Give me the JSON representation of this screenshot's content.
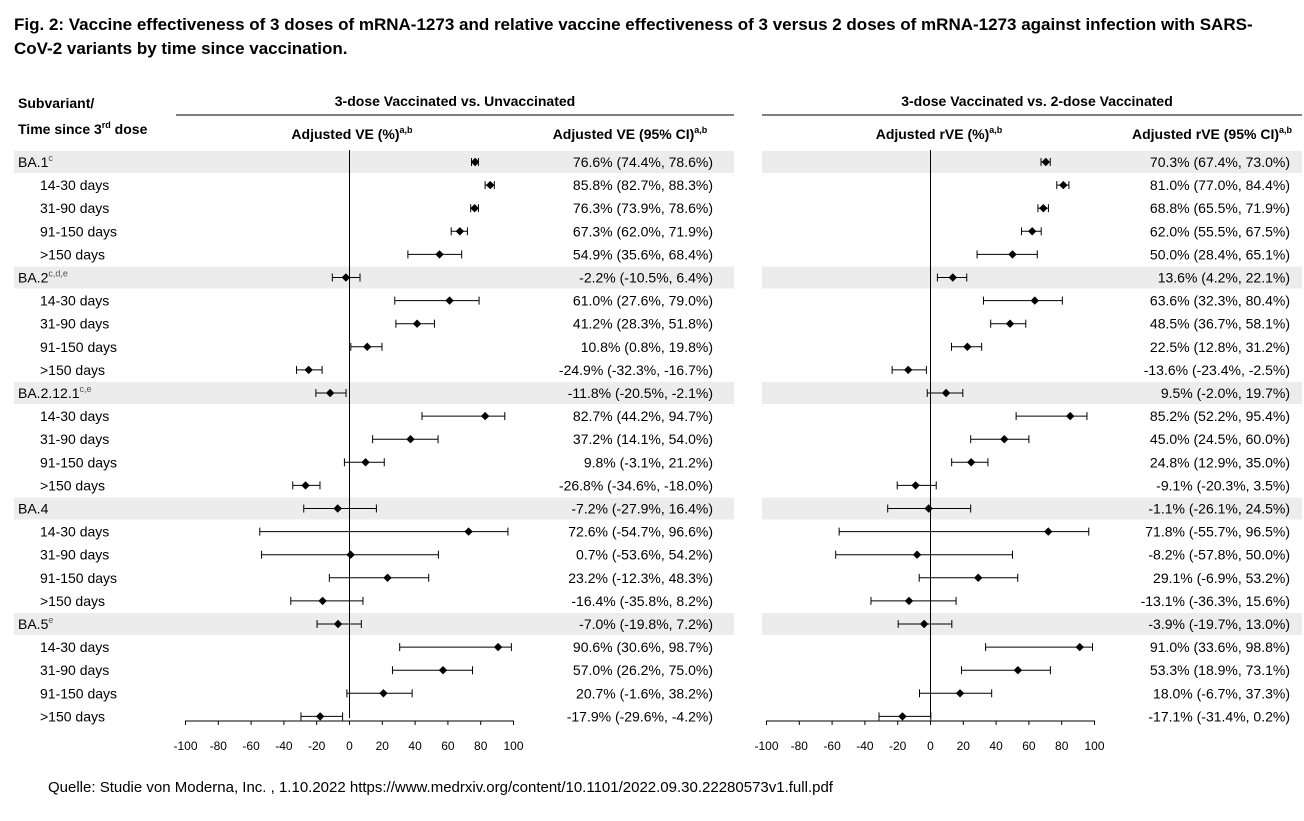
{
  "title_line1": "Fig. 2: Vaccine effectiveness of 3 doses of mRNA-1273 and relative vaccine effectiveness of 3 versus 2 doses of mRNA-1273 against infection with SARS-",
  "title_line2": "CoV-2 variants by time since vaccination.",
  "row_header_line1": "Subvariant/",
  "row_header_line2_pre": "Time since 3",
  "row_header_line2_sup": "rd",
  "row_header_line2_post": " dose",
  "panels": [
    {
      "group_title": "3-dose Vaccinated vs. Unvaccinated",
      "plot_header": "Adjusted VE (%)",
      "plot_header_sup": "a,b",
      "ci_header": "Adjusted VE (95% CI)",
      "ci_header_sup": "a,b"
    },
    {
      "group_title": "3-dose Vaccinated vs. 2-dose Vaccinated",
      "plot_header": "Adjusted rVE (%)",
      "plot_header_sup": "a,b",
      "ci_header": "Adjusted rVE (95% CI)",
      "ci_header_sup": "a,b"
    }
  ],
  "source": "Quelle: Studie von Moderna, Inc. , 1.10.2022  https://www.medrxiv.org/content/10.1101/2022.09.30.22280573v1.full.pdf",
  "chart_data": [
    {
      "type": "scatter",
      "subtype": "forest",
      "xlim": [
        -100,
        100
      ],
      "xticks": [
        "-100",
        "-80",
        "-60",
        "-40",
        "-20",
        "0",
        "20",
        "40",
        "60",
        "80",
        "100"
      ],
      "ref_line": 0,
      "rows": [
        {
          "label": "BA.1",
          "sup": "c",
          "group": true,
          "est": 76.6,
          "lo": 74.4,
          "hi": 78.6,
          "text": "76.6% (74.4%, 78.6%)"
        },
        {
          "label": "14-30 days",
          "group": false,
          "est": 85.8,
          "lo": 82.7,
          "hi": 88.3,
          "text": "85.8% (82.7%, 88.3%)"
        },
        {
          "label": "31-90 days",
          "group": false,
          "est": 76.3,
          "lo": 73.9,
          "hi": 78.6,
          "text": "76.3% (73.9%, 78.6%)"
        },
        {
          "label": "91-150 days",
          "group": false,
          "est": 67.3,
          "lo": 62.0,
          "hi": 71.9,
          "text": "67.3% (62.0%, 71.9%)"
        },
        {
          "label": ">150 days",
          "group": false,
          "est": 54.9,
          "lo": 35.6,
          "hi": 68.4,
          "text": "54.9% (35.6%, 68.4%)"
        },
        {
          "label": "BA.2",
          "sup": "c,d,e",
          "group": true,
          "est": -2.2,
          "lo": -10.5,
          "hi": 6.4,
          "text": "-2.2% (-10.5%, 6.4%)"
        },
        {
          "label": "14-30 days",
          "group": false,
          "est": 61.0,
          "lo": 27.6,
          "hi": 79.0,
          "text": "61.0% (27.6%, 79.0%)"
        },
        {
          "label": "31-90 days",
          "group": false,
          "est": 41.2,
          "lo": 28.3,
          "hi": 51.8,
          "text": "41.2% (28.3%, 51.8%)"
        },
        {
          "label": "91-150 days",
          "group": false,
          "est": 10.8,
          "lo": 0.8,
          "hi": 19.8,
          "text": "10.8% (0.8%, 19.8%)"
        },
        {
          "label": ">150 days",
          "group": false,
          "est": -24.9,
          "lo": -32.3,
          "hi": -16.7,
          "text": "-24.9% (-32.3%, -16.7%)"
        },
        {
          "label": "BA.2.12.1",
          "sup": "c,e",
          "group": true,
          "est": -11.8,
          "lo": -20.5,
          "hi": -2.1,
          "text": "-11.8% (-20.5%, -2.1%)"
        },
        {
          "label": "14-30 days",
          "group": false,
          "est": 82.7,
          "lo": 44.2,
          "hi": 94.7,
          "text": "82.7% (44.2%, 94.7%)"
        },
        {
          "label": "31-90 days",
          "group": false,
          "est": 37.2,
          "lo": 14.1,
          "hi": 54.0,
          "text": "37.2% (14.1%, 54.0%)"
        },
        {
          "label": "91-150 days",
          "group": false,
          "est": 9.8,
          "lo": -3.1,
          "hi": 21.2,
          "text": "9.8% (-3.1%, 21.2%)"
        },
        {
          "label": ">150 days",
          "group": false,
          "est": -26.8,
          "lo": -34.6,
          "hi": -18.0,
          "text": "-26.8% (-34.6%, -18.0%)"
        },
        {
          "label": "BA.4",
          "sup": "",
          "group": true,
          "est": -7.2,
          "lo": -27.9,
          "hi": 16.4,
          "text": "-7.2% (-27.9%, 16.4%)"
        },
        {
          "label": "14-30 days",
          "group": false,
          "est": 72.6,
          "lo": -54.7,
          "hi": 96.6,
          "text": "72.6% (-54.7%, 96.6%)"
        },
        {
          "label": "31-90 days",
          "group": false,
          "est": 0.7,
          "lo": -53.6,
          "hi": 54.2,
          "text": "0.7% (-53.6%, 54.2%)"
        },
        {
          "label": "91-150 days",
          "group": false,
          "est": 23.2,
          "lo": -12.3,
          "hi": 48.3,
          "text": "23.2% (-12.3%, 48.3%)"
        },
        {
          "label": ">150 days",
          "group": false,
          "est": -16.4,
          "lo": -35.8,
          "hi": 8.2,
          "text": "-16.4% (-35.8%, 8.2%)"
        },
        {
          "label": "BA.5",
          "sup": "e",
          "group": true,
          "est": -7.0,
          "lo": -19.8,
          "hi": 7.2,
          "text": "-7.0% (-19.8%, 7.2%)"
        },
        {
          "label": "14-30 days",
          "group": false,
          "est": 90.6,
          "lo": 30.6,
          "hi": 98.7,
          "text": "90.6% (30.6%, 98.7%)"
        },
        {
          "label": "31-90 days",
          "group": false,
          "est": 57.0,
          "lo": 26.2,
          "hi": 75.0,
          "text": "57.0% (26.2%, 75.0%)"
        },
        {
          "label": "91-150 days",
          "group": false,
          "est": 20.7,
          "lo": -1.6,
          "hi": 38.2,
          "text": "20.7% (-1.6%, 38.2%)"
        },
        {
          "label": ">150 days",
          "group": false,
          "est": -17.9,
          "lo": -29.6,
          "hi": -4.2,
          "text": "-17.9% (-29.6%, -4.2%)"
        }
      ]
    },
    {
      "type": "scatter",
      "subtype": "forest",
      "xlim": [
        -100,
        100
      ],
      "xticks": [
        "-100",
        "-80",
        "-60",
        "-40",
        "-20",
        "0",
        "20",
        "40",
        "60",
        "80",
        "100"
      ],
      "ref_line": 0,
      "rows": [
        {
          "est": 70.3,
          "lo": 67.4,
          "hi": 73.0,
          "text": "70.3% (67.4%, 73.0%)"
        },
        {
          "est": 81.0,
          "lo": 77.0,
          "hi": 84.4,
          "text": "81.0% (77.0%, 84.4%)"
        },
        {
          "est": 68.8,
          "lo": 65.5,
          "hi": 71.9,
          "text": "68.8% (65.5%, 71.9%)"
        },
        {
          "est": 62.0,
          "lo": 55.5,
          "hi": 67.5,
          "text": "62.0% (55.5%, 67.5%)"
        },
        {
          "est": 50.0,
          "lo": 28.4,
          "hi": 65.1,
          "text": "50.0% (28.4%, 65.1%)"
        },
        {
          "est": 13.6,
          "lo": 4.2,
          "hi": 22.1,
          "text": "13.6% (4.2%, 22.1%)"
        },
        {
          "est": 63.6,
          "lo": 32.3,
          "hi": 80.4,
          "text": "63.6% (32.3%, 80.4%)"
        },
        {
          "est": 48.5,
          "lo": 36.7,
          "hi": 58.1,
          "text": "48.5% (36.7%, 58.1%)"
        },
        {
          "est": 22.5,
          "lo": 12.8,
          "hi": 31.2,
          "text": "22.5% (12.8%, 31.2%)"
        },
        {
          "est": -13.6,
          "lo": -23.4,
          "hi": -2.5,
          "text": "-13.6% (-23.4%, -2.5%)"
        },
        {
          "est": 9.5,
          "lo": -2.0,
          "hi": 19.7,
          "text": "9.5% (-2.0%, 19.7%)"
        },
        {
          "est": 85.2,
          "lo": 52.2,
          "hi": 95.4,
          "text": "85.2% (52.2%, 95.4%)"
        },
        {
          "est": 45.0,
          "lo": 24.5,
          "hi": 60.0,
          "text": "45.0% (24.5%, 60.0%)"
        },
        {
          "est": 24.8,
          "lo": 12.9,
          "hi": 35.0,
          "text": "24.8% (12.9%, 35.0%)"
        },
        {
          "est": -9.1,
          "lo": -20.3,
          "hi": 3.5,
          "text": "-9.1% (-20.3%, 3.5%)"
        },
        {
          "est": -1.1,
          "lo": -26.1,
          "hi": 24.5,
          "text": "-1.1% (-26.1%, 24.5%)"
        },
        {
          "est": 71.8,
          "lo": -55.7,
          "hi": 96.5,
          "text": "71.8% (-55.7%, 96.5%)"
        },
        {
          "est": -8.2,
          "lo": -57.8,
          "hi": 50.0,
          "text": "-8.2% (-57.8%, 50.0%)"
        },
        {
          "est": 29.1,
          "lo": -6.9,
          "hi": 53.2,
          "text": "29.1% (-6.9%, 53.2%)"
        },
        {
          "est": -13.1,
          "lo": -36.3,
          "hi": 15.6,
          "text": "-13.1% (-36.3%, 15.6%)"
        },
        {
          "est": -3.9,
          "lo": -19.7,
          "hi": 13.0,
          "text": "-3.9% (-19.7%, 13.0%)"
        },
        {
          "est": 91.0,
          "lo": 33.6,
          "hi": 98.8,
          "text": "91.0% (33.6%, 98.8%)"
        },
        {
          "est": 53.3,
          "lo": 18.9,
          "hi": 73.1,
          "text": "53.3% (18.9%, 73.1%)"
        },
        {
          "est": 18.0,
          "lo": -6.7,
          "hi": 37.3,
          "text": "18.0% (-6.7%, 37.3%)"
        },
        {
          "est": -17.1,
          "lo": -31.4,
          "hi": 0.2,
          "text": "-17.1% (-31.4%, 0.2%)"
        }
      ]
    }
  ]
}
